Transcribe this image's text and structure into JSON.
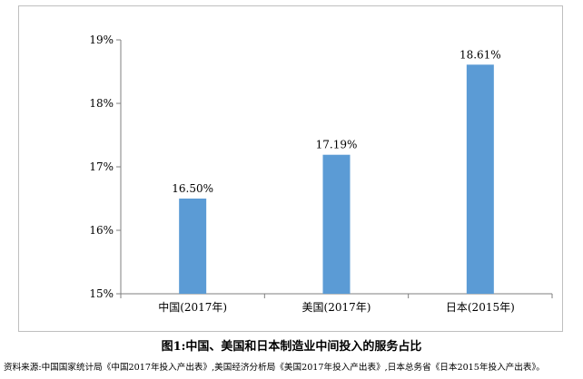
{
  "chart_data": {
    "type": "bar",
    "categories": [
      "中国(2017年)",
      "美国(2017年)",
      "日本(2015年)"
    ],
    "values": [
      16.5,
      17.19,
      18.61
    ],
    "data_labels": [
      "16.50%",
      "17.19%",
      "18.61%"
    ],
    "ylim": [
      15,
      19
    ],
    "yticks": [
      15,
      16,
      17,
      18,
      19
    ],
    "ytick_labels": [
      "15%",
      "16%",
      "17%",
      "18%",
      "19%"
    ],
    "bar_color": "#5b9bd5",
    "grid": false,
    "legend": "none"
  },
  "caption": "图1:中国、美国和日本制造业中间投入的服务占比",
  "source": "资料来源:中国国家统计局《中国2017年投入产出表》,美国经济分析局《美国2017年投入产出表》,日本总务省《日本2015年投入产出表》。"
}
